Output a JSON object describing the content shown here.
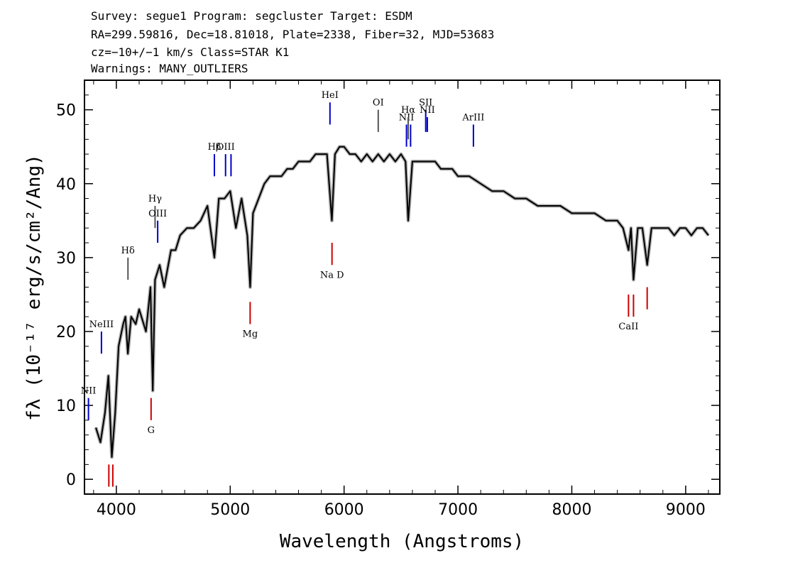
{
  "header": {
    "line1": "Survey: segue1 Program: segcluster Target: ESDM",
    "line2": "RA=299.59816, Dec=18.81018, Plate=2338, Fiber=32, MJD=53683",
    "line3": "cz=−10+/−1 km/s Class=STAR K1",
    "line4": "Warnings: MANY_OUTLIERS"
  },
  "chart_data": {
    "type": "line",
    "xlabel": "Wavelength (Angstroms)",
    "ylabel": "fλ (10⁻¹⁷ erg/s/cm²/Ang)",
    "xlim": [
      3720,
      9300
    ],
    "ylim": [
      -2,
      54
    ],
    "xticks": [
      4000,
      5000,
      6000,
      7000,
      8000,
      9000
    ],
    "yticks": [
      0,
      10,
      20,
      30,
      40,
      50
    ],
    "grid": false,
    "series": [
      {
        "color": "#000000",
        "x": [
          3820,
          3860,
          3900,
          3930,
          3960,
          3990,
          4020,
          4060,
          4080,
          4101,
          4130,
          4170,
          4200,
          4260,
          4300,
          4320,
          4340,
          4380,
          4420,
          4480,
          4520,
          4560,
          4620,
          4680,
          4740,
          4800,
          4861,
          4900,
          4950,
          5000,
          5050,
          5100,
          5150,
          5175,
          5200,
          5250,
          5300,
          5350,
          5400,
          5450,
          5500,
          5550,
          5600,
          5650,
          5700,
          5750,
          5800,
          5850,
          5893,
          5920,
          5960,
          6000,
          6050,
          6100,
          6150,
          6200,
          6250,
          6300,
          6350,
          6400,
          6450,
          6500,
          6540,
          6563,
          6600,
          6650,
          6700,
          6750,
          6800,
          6850,
          6900,
          6950,
          7000,
          7100,
          7200,
          7300,
          7400,
          7500,
          7600,
          7700,
          7800,
          7900,
          8000,
          8100,
          8200,
          8300,
          8400,
          8450,
          8498,
          8520,
          8542,
          8580,
          8620,
          8662,
          8700,
          8750,
          8800,
          8850,
          8900,
          8950,
          9000,
          9050,
          9100,
          9150,
          9200
        ],
        "y": [
          7,
          5,
          9,
          14,
          3,
          9,
          18,
          21,
          22,
          17,
          22,
          21,
          23,
          20,
          26,
          12,
          27,
          29,
          26,
          31,
          31,
          33,
          34,
          34,
          35,
          37,
          30,
          38,
          38,
          39,
          34,
          38,
          33,
          26,
          36,
          38,
          40,
          41,
          41,
          41,
          42,
          42,
          43,
          43,
          43,
          44,
          44,
          44,
          35,
          44,
          45,
          45,
          44,
          44,
          43,
          44,
          43,
          44,
          43,
          44,
          43,
          44,
          43,
          35,
          43,
          43,
          43,
          43,
          43,
          42,
          42,
          42,
          41,
          41,
          40,
          39,
          39,
          38,
          38,
          37,
          37,
          37,
          36,
          36,
          36,
          35,
          35,
          34,
          31,
          34,
          27,
          34,
          34,
          29,
          34,
          34,
          34,
          34,
          33,
          34,
          34,
          33,
          34,
          34,
          33
        ]
      }
    ],
    "annotations": [
      {
        "label": "NII",
        "x": 3755,
        "color": "#0000cc",
        "ytop": 11,
        "ybot": 8
      },
      {
        "label": "NeIII",
        "x": 3869,
        "color": "#0000cc",
        "ytop": 20,
        "ybot": 17
      },
      {
        "label": "Hδ",
        "x": 4102,
        "color": "#555555",
        "ytop": 30,
        "ybot": 27
      },
      {
        "label": "Hγ",
        "x": 4340,
        "color": "#555555",
        "ytop": 37,
        "ybot": 34
      },
      {
        "label": "OIII",
        "x": 4363,
        "color": "#0000cc",
        "ytop": 35,
        "ybot": 32
      },
      {
        "label": "Hβ",
        "x": 4861,
        "color": "#0000cc",
        "ytop": 44,
        "ybot": 41
      },
      {
        "label": "OIII",
        "x": 4959,
        "color": "#0000cc",
        "ytop": 44,
        "ybot": 41
      },
      {
        "label": "",
        "x": 5007,
        "color": "#0000cc",
        "ytop": 44,
        "ybot": 41
      },
      {
        "label": "HeI",
        "x": 5876,
        "color": "#0000cc",
        "ytop": 51,
        "ybot": 48
      },
      {
        "label": "OI",
        "x": 6300,
        "color": "#555555",
        "ytop": 50,
        "ybot": 47
      },
      {
        "label": "NII",
        "x": 6548,
        "color": "#0000cc",
        "ytop": 48,
        "ybot": 45
      },
      {
        "label": "Hα",
        "x": 6563,
        "color": "#555555",
        "ytop": 49,
        "ybot": 46
      },
      {
        "label": "",
        "x": 6584,
        "color": "#0000cc",
        "ytop": 48,
        "ybot": 45
      },
      {
        "label": "SII",
        "x": 6717,
        "color": "#0000cc",
        "ytop": 50,
        "ybot": 47
      },
      {
        "label": "NII",
        "x": 6731,
        "color": "#0000cc",
        "ytop": 49,
        "ybot": 47
      },
      {
        "label": "ArIII",
        "x": 7136,
        "color": "#0000cc",
        "ytop": 48,
        "ybot": 45
      },
      {
        "label": "",
        "x": 3934,
        "color": "#cc0000",
        "ytop": 2,
        "ybot": -1
      },
      {
        "label": "",
        "x": 3969,
        "color": "#cc0000",
        "ytop": 2,
        "ybot": -1
      },
      {
        "label": "G",
        "x": 4305,
        "color": "#cc0000",
        "ytop": 11,
        "ybot": 8
      },
      {
        "label": "Mg",
        "x": 5175,
        "color": "#cc0000",
        "ytop": 24,
        "ybot": 21
      },
      {
        "label": "Na D",
        "x": 5894,
        "color": "#cc0000",
        "ytop": 32,
        "ybot": 29
      },
      {
        "label": "CaII",
        "x": 8498,
        "color": "#cc0000",
        "ytop": 25,
        "ybot": 22
      },
      {
        "label": "",
        "x": 8542,
        "color": "#cc0000",
        "ytop": 25,
        "ybot": 22
      },
      {
        "label": "",
        "x": 8662,
        "color": "#cc0000",
        "ytop": 26,
        "ybot": 23
      }
    ]
  }
}
